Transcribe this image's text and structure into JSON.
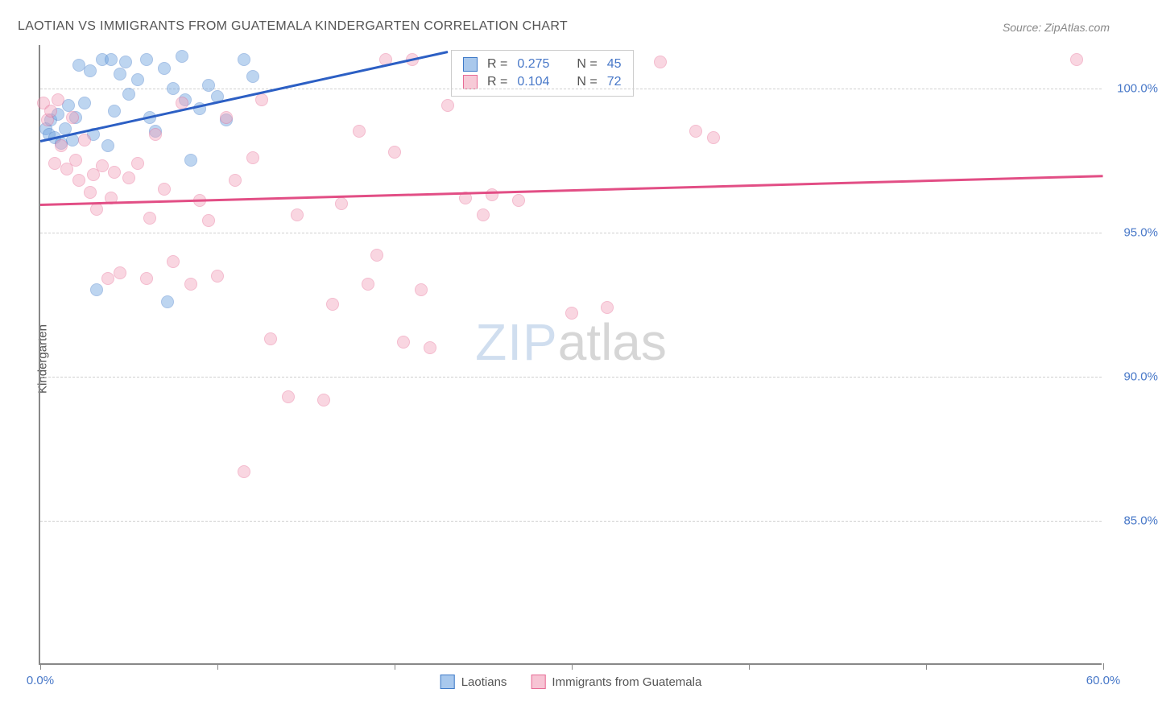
{
  "title": "LAOTIAN VS IMMIGRANTS FROM GUATEMALA KINDERGARTEN CORRELATION CHART",
  "source": "Source: ZipAtlas.com",
  "y_axis_label": "Kindergarten",
  "watermark": {
    "part1": "ZIP",
    "part2": "atlas"
  },
  "chart": {
    "type": "scatter",
    "xlim": [
      0,
      60
    ],
    "ylim": [
      80,
      101.5
    ],
    "x_ticks": [
      0,
      10,
      20,
      30,
      40,
      50,
      60
    ],
    "x_tick_labels_shown": {
      "0": "0.0%",
      "60": "60.0%"
    },
    "y_ticks": [
      85,
      90,
      95,
      100
    ],
    "y_tick_labels": [
      "85.0%",
      "90.0%",
      "95.0%",
      "100.0%"
    ],
    "background_color": "#ffffff",
    "grid_color": "#d0d0d0",
    "axis_color": "#888888",
    "label_color": "#555555",
    "tick_label_color": "#4878c8",
    "marker_radius": 8,
    "marker_opacity": 0.45,
    "series": [
      {
        "name": "Laotians",
        "color_fill": "#6fa3e0",
        "color_stroke": "#3f7ac8",
        "r": "0.275",
        "n": "45",
        "trend": {
          "x1": 0,
          "y1": 98.2,
          "x2": 23,
          "y2": 101.3,
          "color": "#2c5fc4",
          "width": 2.5
        },
        "points": [
          [
            0.3,
            98.6
          ],
          [
            0.5,
            98.4
          ],
          [
            0.6,
            98.9
          ],
          [
            0.8,
            98.3
          ],
          [
            1.0,
            99.1
          ],
          [
            1.2,
            98.1
          ],
          [
            1.4,
            98.6
          ],
          [
            1.6,
            99.4
          ],
          [
            1.8,
            98.2
          ],
          [
            2.0,
            99.0
          ],
          [
            2.2,
            100.8
          ],
          [
            2.5,
            99.5
          ],
          [
            2.8,
            100.6
          ],
          [
            3.0,
            98.4
          ],
          [
            3.2,
            93.0
          ],
          [
            3.5,
            101.0
          ],
          [
            3.8,
            98.0
          ],
          [
            4.0,
            101.0
          ],
          [
            4.2,
            99.2
          ],
          [
            4.5,
            100.5
          ],
          [
            4.8,
            100.9
          ],
          [
            5.0,
            99.8
          ],
          [
            5.5,
            100.3
          ],
          [
            6.0,
            101.0
          ],
          [
            6.2,
            99.0
          ],
          [
            6.5,
            98.5
          ],
          [
            7.0,
            100.7
          ],
          [
            7.2,
            92.6
          ],
          [
            7.5,
            100.0
          ],
          [
            8.0,
            101.1
          ],
          [
            8.2,
            99.6
          ],
          [
            8.5,
            97.5
          ],
          [
            9.0,
            99.3
          ],
          [
            9.5,
            100.1
          ],
          [
            10.0,
            99.7
          ],
          [
            10.5,
            98.9
          ],
          [
            11.5,
            101.0
          ],
          [
            12.0,
            100.4
          ]
        ]
      },
      {
        "name": "Immigrants from Guatemala",
        "color_fill": "#f2a6bd",
        "color_stroke": "#e76b95",
        "r": "0.104",
        "n": "72",
        "trend": {
          "x1": 0,
          "y1": 96.0,
          "x2": 60,
          "y2": 97.0,
          "color": "#e24e85",
          "width": 2.5
        },
        "points": [
          [
            0.2,
            99.5
          ],
          [
            0.4,
            98.9
          ],
          [
            0.6,
            99.2
          ],
          [
            0.8,
            97.4
          ],
          [
            1.0,
            99.6
          ],
          [
            1.2,
            98.0
          ],
          [
            1.5,
            97.2
          ],
          [
            1.8,
            99.0
          ],
          [
            2.0,
            97.5
          ],
          [
            2.2,
            96.8
          ],
          [
            2.5,
            98.2
          ],
          [
            2.8,
            96.4
          ],
          [
            3.0,
            97.0
          ],
          [
            3.2,
            95.8
          ],
          [
            3.5,
            97.3
          ],
          [
            3.8,
            93.4
          ],
          [
            4.0,
            96.2
          ],
          [
            4.2,
            97.1
          ],
          [
            4.5,
            93.6
          ],
          [
            5.0,
            96.9
          ],
          [
            5.5,
            97.4
          ],
          [
            6.0,
            93.4
          ],
          [
            6.2,
            95.5
          ],
          [
            6.5,
            98.4
          ],
          [
            7.0,
            96.5
          ],
          [
            7.5,
            94.0
          ],
          [
            8.0,
            99.5
          ],
          [
            8.5,
            93.2
          ],
          [
            9.0,
            96.1
          ],
          [
            9.5,
            95.4
          ],
          [
            10.0,
            93.5
          ],
          [
            10.5,
            99.0
          ],
          [
            11.0,
            96.8
          ],
          [
            11.5,
            86.7
          ],
          [
            12.0,
            97.6
          ],
          [
            12.5,
            99.6
          ],
          [
            13.0,
            91.3
          ],
          [
            14.0,
            89.3
          ],
          [
            14.5,
            95.6
          ],
          [
            16.0,
            89.2
          ],
          [
            16.5,
            92.5
          ],
          [
            17.0,
            96.0
          ],
          [
            18.0,
            98.5
          ],
          [
            18.5,
            93.2
          ],
          [
            19.0,
            94.2
          ],
          [
            19.5,
            101.0
          ],
          [
            20.0,
            97.8
          ],
          [
            20.5,
            91.2
          ],
          [
            21.0,
            101.0
          ],
          [
            21.5,
            93.0
          ],
          [
            22.0,
            91.0
          ],
          [
            23.0,
            99.4
          ],
          [
            24.0,
            96.2
          ],
          [
            25.0,
            95.6
          ],
          [
            25.5,
            96.3
          ],
          [
            27.0,
            96.1
          ],
          [
            30.0,
            92.2
          ],
          [
            32.0,
            92.4
          ],
          [
            35.0,
            100.9
          ],
          [
            37.0,
            98.5
          ],
          [
            38.0,
            98.3
          ],
          [
            58.5,
            101.0
          ]
        ]
      }
    ]
  },
  "stats_box": {
    "r_label": "R =",
    "n_label": "N ="
  },
  "bottom_legend": {
    "items": [
      {
        "label": "Laotians",
        "fill": "#a8c8ed",
        "stroke": "#3f7ac8"
      },
      {
        "label": "Immigrants from Guatemala",
        "fill": "#f7c4d4",
        "stroke": "#e76b95"
      }
    ]
  }
}
